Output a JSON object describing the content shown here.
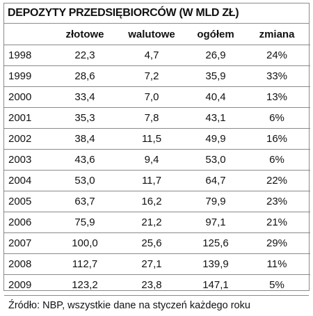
{
  "title": "DEPOZYTY PRZEDSIĘBIORCÓW (W MLD ZŁ)",
  "columns": [
    "",
    "złotowe",
    "walutowe",
    "ogółem",
    "zmiana"
  ],
  "rows": [
    [
      "1998",
      "22,3",
      "4,7",
      "26,9",
      "24%"
    ],
    [
      "1999",
      "28,6",
      "7,2",
      "35,9",
      "33%"
    ],
    [
      "2000",
      "33,4",
      "7,0",
      "40,4",
      "13%"
    ],
    [
      "2001",
      "35,3",
      "7,8",
      "43,1",
      "6%"
    ],
    [
      "2002",
      "38,4",
      "11,5",
      "49,9",
      "16%"
    ],
    [
      "2003",
      "43,6",
      "9,4",
      "53,0",
      "6%"
    ],
    [
      "2004",
      "53,0",
      "11,7",
      "64,7",
      "22%"
    ],
    [
      "2005",
      "63,7",
      "16,2",
      "79,9",
      "23%"
    ],
    [
      "2006",
      "75,9",
      "21,2",
      "97,1",
      "21%"
    ],
    [
      "2007",
      "100,0",
      "25,6",
      "125,6",
      "29%"
    ],
    [
      "2008",
      "112,7",
      "27,1",
      "139,9",
      "11%"
    ],
    [
      "2009",
      "123,2",
      "23,8",
      "147,1",
      "5%"
    ]
  ],
  "source": "Źródło: NBP, wszystkie dane na styczeń każdego roku"
}
